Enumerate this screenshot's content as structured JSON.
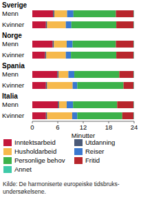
{
  "chart_data": {
    "type": "bar",
    "orientation": "horizontal",
    "stacked": true,
    "grid": false,
    "x_label": "Minutter",
    "xlim": [
      0,
      24
    ],
    "xticks": [
      0,
      6,
      12,
      18,
      24
    ],
    "groups": [
      {
        "name": "Sverige",
        "categories": [
          "Menn",
          "Kvinner"
        ]
      },
      {
        "name": "Norge",
        "categories": [
          "Menn",
          "Kvinner"
        ]
      },
      {
        "name": "Spania",
        "categories": [
          "Menn",
          "Kvinner"
        ]
      },
      {
        "name": "Italia",
        "categories": [
          "Menn",
          "Kvinner"
        ]
      }
    ],
    "series": [
      {
        "name": "Inntektsarbeid",
        "color": "#c4173b",
        "values": [
          4.9,
          3.2,
          4.8,
          3.0,
          5.9,
          3.2,
          6.0,
          3.2
        ]
      },
      {
        "name": "Utdanning",
        "color": "#4a5a78",
        "values": [
          0.3,
          0.3,
          0.3,
          0.3,
          0.3,
          0.3,
          0.3,
          0.3
        ]
      },
      {
        "name": "Husholdarbeid",
        "color": "#f6b94c",
        "values": [
          3.0,
          4.4,
          3.0,
          4.6,
          2.3,
          6.0,
          1.8,
          5.9
        ]
      },
      {
        "name": "Reiser",
        "color": "#3a78cf",
        "values": [
          1.5,
          1.3,
          1.4,
          1.2,
          1.4,
          1.1,
          1.5,
          1.2
        ]
      },
      {
        "name": "Personlige behov",
        "color": "#3cb24a",
        "values": [
          10.0,
          10.6,
          10.2,
          10.7,
          10.6,
          10.9,
          10.4,
          10.6
        ]
      },
      {
        "name": "Fritid",
        "color": "#b8262c",
        "values": [
          4.2,
          4.1,
          4.2,
          4.1,
          3.4,
          2.4,
          3.9,
          2.7
        ]
      },
      {
        "name": "Annet",
        "color": "#3ecaa8",
        "values": [
          0.1,
          0.1,
          0.1,
          0.1,
          0.1,
          0.1,
          0.1,
          0.1
        ]
      }
    ],
    "legend": "bottom",
    "source": "Kilde: De harmoniserte europeiske tidsbruks-undersøkelsene."
  }
}
